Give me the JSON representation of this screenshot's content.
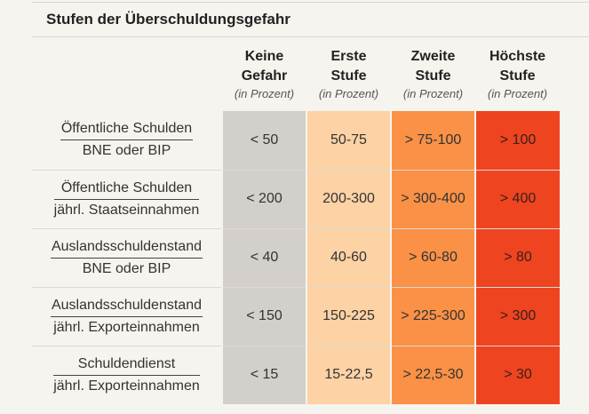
{
  "title": "Stufen der Überschuldungsgefahr",
  "columns": [
    {
      "label_line1": "Keine",
      "label_line2": "Gefahr",
      "unit": "(in Prozent)",
      "color": "#d3d0cb"
    },
    {
      "label_line1": "Erste",
      "label_line2": "Stufe",
      "unit": "(in Prozent)",
      "color": "#fdd2a4"
    },
    {
      "label_line1": "Zweite",
      "label_line2": "Stufe",
      "unit": "(in Prozent)",
      "color": "#fa9146"
    },
    {
      "label_line1": "Höchste",
      "label_line2": "Stufe",
      "unit": "(in Prozent)",
      "color": "#ee4420"
    }
  ],
  "rows": [
    {
      "numerator": "Öffentliche Schulden",
      "denominator": "BNE oder BIP",
      "values": [
        "< 50",
        "50-75",
        "> 75-100",
        "> 100"
      ]
    },
    {
      "numerator": "Öffentliche Schulden",
      "denominator": "jährl. Staatseinnahmen",
      "values": [
        "< 200",
        "200-300",
        "> 300-400",
        "> 400"
      ]
    },
    {
      "numerator": "Auslandsschuldenstand",
      "denominator": "BNE oder BIP",
      "values": [
        "< 40",
        "40-60",
        "> 60-80",
        "> 80"
      ]
    },
    {
      "numerator": "Auslandsschuldenstand",
      "denominator": "jährl. Exporteinnahmen",
      "values": [
        "< 150",
        "150-225",
        "> 225-300",
        "> 300"
      ]
    },
    {
      "numerator": "Schuldendienst",
      "denominator": "jährl. Exporteinnahmen",
      "values": [
        "< 15",
        "15-22,5",
        "> 22,5-30",
        "> 30"
      ]
    }
  ]
}
